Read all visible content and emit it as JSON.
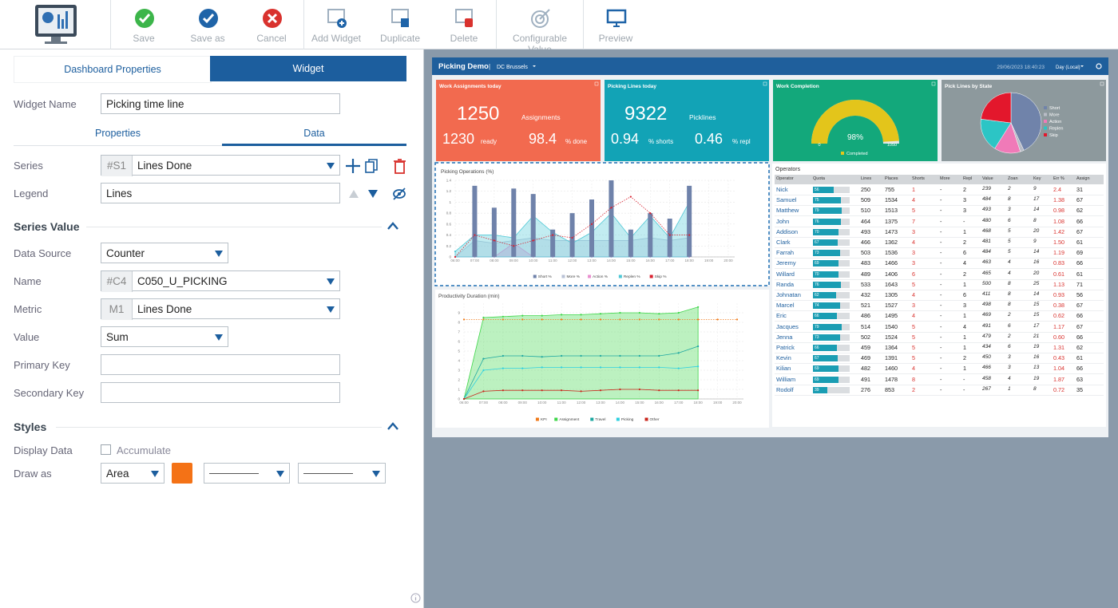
{
  "toolbar": {
    "buttons": [
      "Save",
      "Save as",
      "Cancel",
      "Add Widget",
      "Duplicate",
      "Delete",
      "Configurable Value",
      "Preview"
    ]
  },
  "editor": {
    "tabs": [
      "Dashboard Properties",
      "Widget"
    ],
    "widget_name": {
      "label": "Widget Name",
      "value": "Picking time line"
    },
    "subtabs": [
      "Properties",
      "Data"
    ],
    "series": {
      "label": "Series",
      "id": "#S1",
      "value": "Lines Done"
    },
    "legend": {
      "label": "Legend",
      "value": "Lines"
    },
    "series_value": {
      "title": "Series Value",
      "data_source": {
        "label": "Data Source",
        "value": "Counter"
      },
      "name": {
        "label": "Name",
        "id": "#C4",
        "value": "C050_U_PICKING"
      },
      "metric": {
        "label": "Metric",
        "id": "M1",
        "value": "Lines Done"
      },
      "value": {
        "label": "Value",
        "value": "Sum"
      },
      "primary_key": {
        "label": "Primary Key"
      },
      "secondary_key": {
        "label": "Secondary Key"
      }
    },
    "styles": {
      "title": "Styles",
      "display_data": {
        "label": "Display Data",
        "option": "Accumulate"
      },
      "draw_as": {
        "label": "Draw as",
        "value": "Area",
        "color": "#f47216"
      }
    }
  },
  "dashboard": {
    "title": "Picking Demo",
    "location": "DC Brussels",
    "timestamp": "29/06/2023 18:40:23",
    "period": "Day (Local)",
    "work_assignments": {
      "title": "Work Assignments today",
      "color": "#f26a4f",
      "total": 1250,
      "total_label": "Assignments",
      "ready": 1230,
      "ready_label": "ready",
      "done": 98.4,
      "done_label": "% done"
    },
    "picking_lines": {
      "title": "Picking Lines today",
      "color": "#12a3b6",
      "total": 9322,
      "total_label": "Picklines",
      "shorts": 0.94,
      "shorts_label": "% shorts",
      "repl": 0.46,
      "repl_label": "% repl"
    },
    "work_completion": {
      "type": "gauge",
      "title": "Work Completion",
      "color": "#13a87b",
      "bar_color": "#e3c51b",
      "percent": 98,
      "percent_label": "98%",
      "min": 0,
      "max": 1050,
      "legend": "Completed"
    },
    "pick_lines_by_state": {
      "type": "pie",
      "title": "Pick Lines by State",
      "color": "#8d999d",
      "series": [
        {
          "name": "Short",
          "color": "#7083aa",
          "value": 43
        },
        {
          "name": "More",
          "color": "#b8bcc6",
          "value": 2
        },
        {
          "name": "Action",
          "color": "#f07ab8",
          "value": 14
        },
        {
          "name": "Replen",
          "color": "#2cc5c5",
          "value": 18
        },
        {
          "name": "Skip",
          "color": "#e3172c",
          "value": 23
        }
      ]
    },
    "picking_operations": {
      "type": "combo",
      "title": "Picking Operations (%)",
      "x": [
        "06:00",
        "07:00",
        "08:00",
        "09:00",
        "10:00",
        "11:00",
        "12:00",
        "13:00",
        "14:00",
        "15:00",
        "16:00",
        "17:00",
        "18:00",
        "19:00",
        "20:00"
      ],
      "ylim": [
        0,
        1.4
      ],
      "yticks": [
        0,
        0.2,
        0.4,
        0.6,
        0.8,
        1,
        1.2,
        1.4
      ],
      "grid": true,
      "series": [
        {
          "name": "Short %",
          "kind": "bar",
          "color": "#6f82aa",
          "values": [
            0,
            1.3,
            0.9,
            1.25,
            1.15,
            0.5,
            0.8,
            1.05,
            1.4,
            0.5,
            0.8,
            0.7,
            1.3,
            null,
            null
          ]
        },
        {
          "name": "More %",
          "kind": "area",
          "color": "#b9c2d6",
          "values": [
            0,
            0.3,
            0.25,
            0.3,
            0.35,
            0.3,
            0.3,
            0.3,
            0.3,
            0.3,
            0.35,
            0.3,
            0.35,
            null,
            null
          ]
        },
        {
          "name": "Action %",
          "kind": "area",
          "color": "#e98fcf",
          "values": [
            0,
            0,
            0,
            0.25,
            0,
            0,
            0,
            0,
            0,
            0,
            0,
            0,
            0,
            null,
            null
          ]
        },
        {
          "name": "Replen %",
          "kind": "area",
          "color": "#4fc8d6",
          "values": [
            0.1,
            0.4,
            0.4,
            0.35,
            0.75,
            0.45,
            0.25,
            0.45,
            0.8,
            0.35,
            0.75,
            0.35,
            1.0,
            null,
            null
          ]
        },
        {
          "name": "Skip %",
          "kind": "line",
          "color": "#d8202e",
          "values": [
            0,
            0.4,
            0.3,
            0.2,
            0.3,
            0.4,
            0.35,
            0.6,
            0.9,
            1.1,
            0.8,
            0.4,
            0.4,
            null,
            null
          ]
        }
      ]
    },
    "productivity_duration": {
      "type": "combo",
      "title": "Productivity Duration (min)",
      "x": [
        "06:00",
        "07:00",
        "08:00",
        "09:00",
        "10:00",
        "11:00",
        "12:00",
        "13:00",
        "14:00",
        "15:00",
        "16:00",
        "17:00",
        "18:00",
        "19:00",
        "20:00"
      ],
      "ylim": [
        0,
        10
      ],
      "yticks": [
        0,
        1,
        2,
        3,
        4,
        5,
        6,
        7,
        8,
        9
      ],
      "grid": true,
      "series": [
        {
          "name": "KPI",
          "kind": "line",
          "color": "#f07a1a",
          "values": [
            8.3,
            8.3,
            8.3,
            8.3,
            8.3,
            8.3,
            8.3,
            8.3,
            8.3,
            8.3,
            8.3,
            8.3,
            8.3,
            8.3,
            8.3
          ]
        },
        {
          "name": "Assignment",
          "kind": "area",
          "color": "#3fd64a",
          "values": [
            0,
            8.5,
            8.6,
            8.7,
            8.7,
            8.8,
            8.8,
            8.9,
            9.0,
            9.0,
            8.9,
            9.0,
            9.6,
            null,
            null
          ]
        },
        {
          "name": "Travel",
          "kind": "line",
          "color": "#1da7a0",
          "values": [
            0,
            4.2,
            4.5,
            4.5,
            4.4,
            4.5,
            4.5,
            4.5,
            4.5,
            4.5,
            4.5,
            4.8,
            5.5,
            null,
            null
          ]
        },
        {
          "name": "Picking",
          "kind": "line",
          "color": "#2fd0e0",
          "values": [
            0,
            3.0,
            3.2,
            3.2,
            3.3,
            3.3,
            3.3,
            3.3,
            3.3,
            3.3,
            3.3,
            3.2,
            3.4,
            null,
            null
          ]
        },
        {
          "name": "Other",
          "kind": "line",
          "color": "#c9261c",
          "values": [
            0,
            0.8,
            0.9,
            0.9,
            0.9,
            0.9,
            0.8,
            0.9,
            1.0,
            1.0,
            0.9,
            0.9,
            0.9,
            null,
            null
          ]
        }
      ]
    },
    "operators": {
      "title": "Operators",
      "headers": [
        "Operator",
        "Quota",
        "Lines",
        "Places",
        "Shorts",
        "More",
        "Repl",
        "Value",
        "Zoan",
        "Key",
        "Err %",
        "Assign"
      ],
      "rows": [
        [
          "Nick",
          "56",
          "250",
          "755",
          "1",
          "-",
          "2",
          "239",
          "2",
          "9",
          "2.4",
          "31"
        ],
        [
          "Samuel",
          "75",
          "509",
          "1534",
          "4",
          "-",
          "3",
          "484",
          "8",
          "17",
          "1.38",
          "67"
        ],
        [
          "Matthew",
          "79",
          "510",
          "1513",
          "5",
          "-",
          "3",
          "493",
          "3",
          "14",
          "0.98",
          "62"
        ],
        [
          "John",
          "76",
          "464",
          "1375",
          "7",
          "-",
          "-",
          "480",
          "6",
          "8",
          "1.08",
          "66"
        ],
        [
          "Addison",
          "70",
          "493",
          "1473",
          "3",
          "-",
          "1",
          "468",
          "5",
          "20",
          "1.42",
          "67"
        ],
        [
          "Clark",
          "67",
          "466",
          "1362",
          "4",
          "-",
          "2",
          "481",
          "5",
          "9",
          "1.50",
          "61"
        ],
        [
          "Farrah",
          "73",
          "503",
          "1536",
          "3",
          "-",
          "6",
          "484",
          "5",
          "14",
          "1.19",
          "69"
        ],
        [
          "Jeremy",
          "69",
          "483",
          "1466",
          "3",
          "-",
          "4",
          "463",
          "4",
          "16",
          "0.83",
          "66"
        ],
        [
          "Willard",
          "70",
          "489",
          "1406",
          "6",
          "-",
          "2",
          "465",
          "4",
          "20",
          "0.61",
          "61"
        ],
        [
          "Randa",
          "76",
          "533",
          "1643",
          "5",
          "-",
          "1",
          "500",
          "8",
          "25",
          "1.13",
          "71"
        ],
        [
          "Johnatan",
          "62",
          "432",
          "1305",
          "4",
          "-",
          "6",
          "411",
          "8",
          "14",
          "0.93",
          "56"
        ],
        [
          "Marcel",
          "74",
          "521",
          "1527",
          "3",
          "-",
          "3",
          "498",
          "8",
          "15",
          "0.38",
          "67"
        ],
        [
          "Eric",
          "66",
          "486",
          "1495",
          "4",
          "-",
          "1",
          "469",
          "2",
          "15",
          "0.62",
          "66"
        ],
        [
          "Jacques",
          "79",
          "514",
          "1540",
          "5",
          "-",
          "4",
          "491",
          "6",
          "17",
          "1.17",
          "67"
        ],
        [
          "Jenna",
          "73",
          "502",
          "1524",
          "5",
          "-",
          "1",
          "479",
          "2",
          "21",
          "0.60",
          "66"
        ],
        [
          "Patrick",
          "66",
          "459",
          "1364",
          "5",
          "-",
          "1",
          "434",
          "6",
          "19",
          "1.31",
          "62"
        ],
        [
          "Kevin",
          "67",
          "469",
          "1391",
          "5",
          "-",
          "2",
          "450",
          "3",
          "16",
          "0.43",
          "61"
        ],
        [
          "Kilian",
          "69",
          "482",
          "1460",
          "4",
          "-",
          "1",
          "466",
          "3",
          "13",
          "1.04",
          "66"
        ],
        [
          "William",
          "69",
          "491",
          "1478",
          "8",
          "-",
          "-",
          "458",
          "4",
          "19",
          "1.87",
          "63"
        ],
        [
          "Rodolf",
          "39",
          "276",
          "853",
          "2",
          "-",
          "-",
          "267",
          "1",
          "8",
          "0.72",
          "35"
        ]
      ]
    }
  }
}
